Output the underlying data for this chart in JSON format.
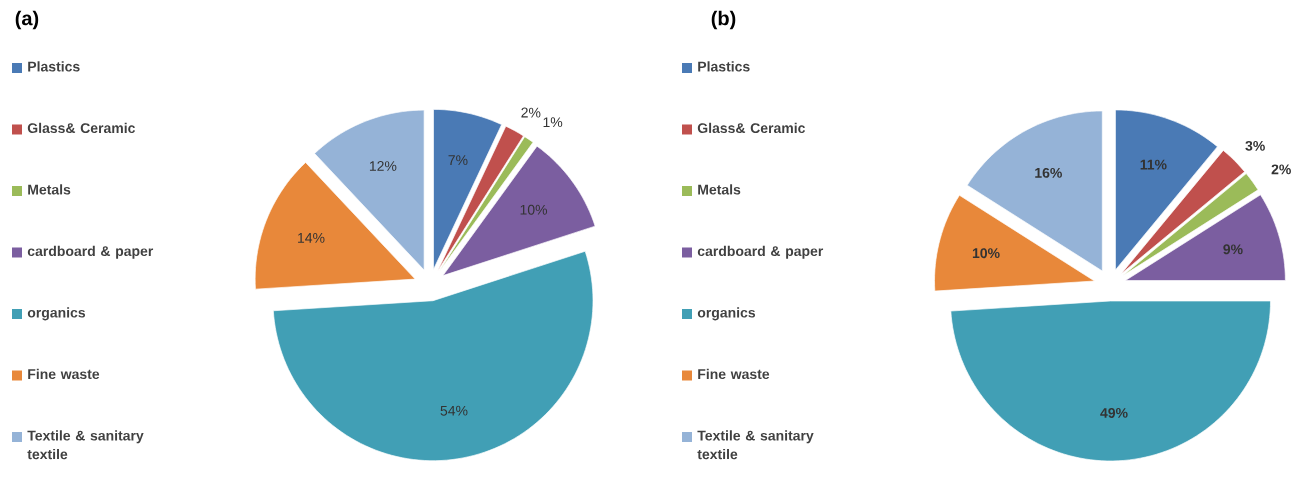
{
  "chart_data": [
    {
      "type": "pie",
      "title": "(a)",
      "legend": "left",
      "categories": [
        "Plastics",
        "Glass& Ceramic",
        "Metals",
        "cardboard & paper",
        "organics",
        "Fine waste",
        "Textile & sanitary textile"
      ],
      "values": [
        7,
        2,
        1,
        10,
        54,
        14,
        12
      ],
      "value_labels": [
        "7%",
        "2%",
        "1%",
        "10%",
        "54%",
        "14%",
        "12%"
      ],
      "colors": [
        "#4a7ab5",
        "#c0504d",
        "#9bbb59",
        "#7b5ea0",
        "#419fb5",
        "#e8883a",
        "#95b3d7"
      ]
    },
    {
      "type": "pie",
      "title": "(b)",
      "legend": "left",
      "categories": [
        "Plastics",
        "Glass& Ceramic",
        "Metals",
        "cardboard & paper",
        "organics",
        "Fine waste",
        "Textile & sanitary textile"
      ],
      "values": [
        11,
        3,
        2,
        9,
        49,
        10,
        16
      ],
      "value_labels": [
        "11%",
        "3%",
        "2%",
        "9%",
        "49%",
        "10%",
        "16%"
      ],
      "colors": [
        "#4a7ab5",
        "#c0504d",
        "#9bbb59",
        "#7b5ea0",
        "#419fb5",
        "#e8883a",
        "#95b3d7"
      ]
    }
  ]
}
